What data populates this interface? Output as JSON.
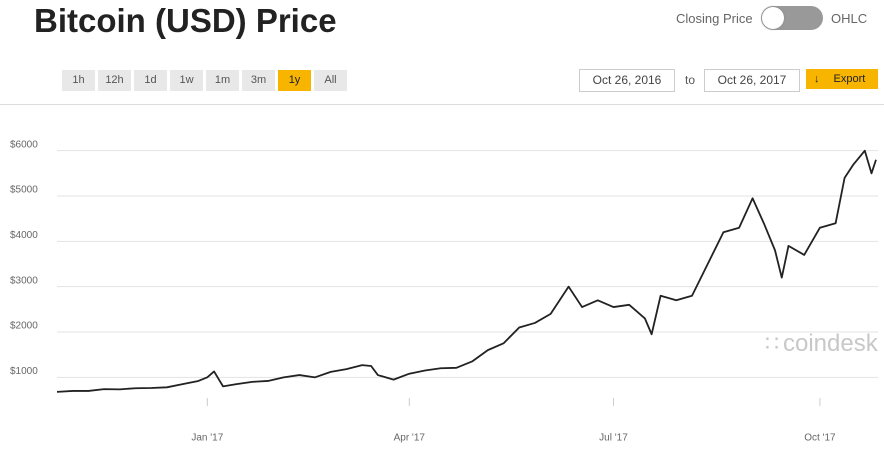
{
  "ui": {
    "title": "Bitcoin (USD) Price",
    "toggle_left": "Closing Price",
    "toggle_right": "OHLC",
    "ranges": [
      "1h",
      "12h",
      "1d",
      "1w",
      "1m",
      "3m",
      "1y",
      "All"
    ],
    "selected_range": "1y",
    "date_from": "Oct 26, 2016",
    "date_sep": "to",
    "date_to": "Oct 26, 2017",
    "export": "Export",
    "watermark": "coindesk"
  },
  "chart_data": {
    "type": "line",
    "color": "#222222",
    "grid": true,
    "x": [
      0,
      7,
      14,
      21,
      28,
      35,
      42,
      49,
      56,
      63,
      67,
      70,
      74,
      80,
      87,
      94,
      101,
      108,
      115,
      122,
      129,
      136,
      140,
      143,
      150,
      157,
      164,
      171,
      178,
      185,
      192,
      199,
      206,
      213,
      220,
      228,
      234,
      241,
      248,
      255,
      262,
      265,
      269,
      276,
      283,
      290,
      297,
      304,
      310,
      315,
      320,
      323,
      326,
      333,
      340,
      347,
      351,
      355,
      360,
      363,
      365
    ],
    "values": [
      680,
      700,
      700,
      740,
      735,
      760,
      765,
      780,
      850,
      920,
      1000,
      1130,
      800,
      850,
      900,
      920,
      1000,
      1050,
      1000,
      1120,
      1180,
      1270,
      1250,
      1050,
      950,
      1080,
      1150,
      1200,
      1210,
      1350,
      1600,
      1750,
      2100,
      2200,
      2400,
      3000,
      2550,
      2700,
      2550,
      2600,
      2300,
      1950,
      2800,
      2700,
      2800,
      3500,
      4200,
      4300,
      4950,
      4400,
      3800,
      3200,
      3900,
      3700,
      4300,
      4400,
      5400,
      5700,
      6000,
      5500,
      5800
    ],
    "xlim": [
      0,
      365
    ],
    "xticks": [
      {
        "value": 67,
        "label": "Jan '17"
      },
      {
        "value": 157,
        "label": "Apr '17"
      },
      {
        "value": 248,
        "label": "Jul '17"
      },
      {
        "value": 340,
        "label": "Oct '17"
      }
    ],
    "ylim": [
      500,
      6500
    ],
    "yticks": [
      {
        "value": 1000,
        "label": "$1000"
      },
      {
        "value": 2000,
        "label": "$2000"
      },
      {
        "value": 3000,
        "label": "$3000"
      },
      {
        "value": 4000,
        "label": "$4000"
      },
      {
        "value": 5000,
        "label": "$5000"
      },
      {
        "value": 6000,
        "label": "$6000"
      }
    ]
  }
}
